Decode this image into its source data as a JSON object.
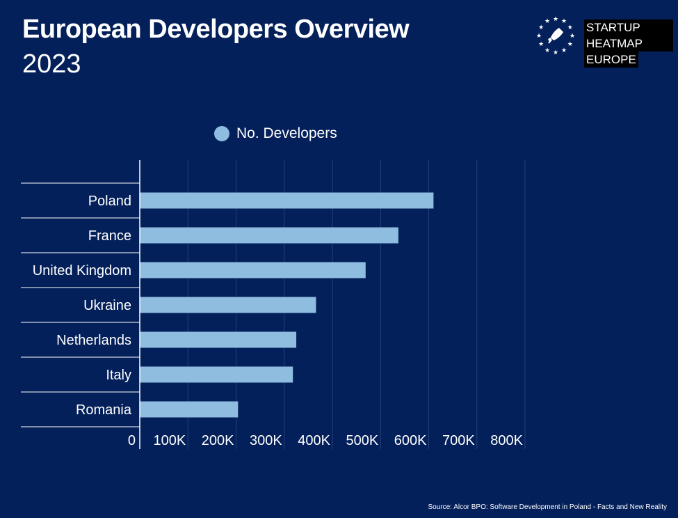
{
  "header": {
    "title": "European Developers Overview",
    "subtitle": "2023"
  },
  "logo": {
    "line1": "STARTUP HEATMAP",
    "line2": "EUROPE",
    "icon": "rocket-icon"
  },
  "colors": {
    "background": "#03205a",
    "bar": "#8fbde0",
    "grid": "#24417a"
  },
  "source": "Source: Alcor BPO: Software Development in Poland - Facts and New Reality",
  "chart_data": {
    "type": "bar",
    "orientation": "horizontal",
    "categories": [
      "Poland",
      "France",
      "United Kingdom",
      "Ukraine",
      "Netherlands",
      "Italy",
      "Romania"
    ],
    "series": [
      {
        "name": "No. Developers",
        "values": [
          610000,
          537000,
          469000,
          366000,
          325000,
          318000,
          204000
        ]
      }
    ],
    "xlim": [
      0,
      800000
    ],
    "xticks": [
      0,
      100000,
      200000,
      300000,
      400000,
      500000,
      600000,
      700000,
      800000
    ],
    "xtick_labels": [
      "0",
      "100K",
      "200K",
      "300K",
      "400K",
      "500K",
      "600K",
      "700K",
      "800K"
    ],
    "legend_position": "top",
    "grid": true
  }
}
